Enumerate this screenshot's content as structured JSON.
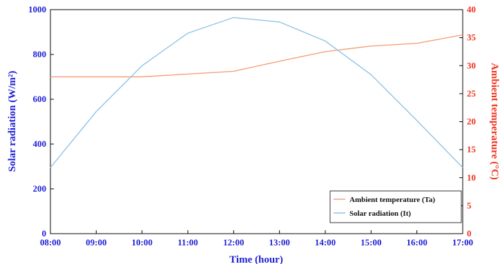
{
  "chart_data": {
    "type": "line",
    "xlabel": "Time (hour)",
    "ylabel_left": "Solar radiation (W/m²)",
    "ylabel_right": "Ambient temperature (°C)",
    "x": [
      "08:00",
      "09:00",
      "10:00",
      "11:00",
      "12:00",
      "13:00",
      "14:00",
      "15:00",
      "16:00",
      "17:00"
    ],
    "ylim_left": [
      0,
      1000
    ],
    "yticks_left": [
      0,
      200,
      400,
      600,
      800,
      1000
    ],
    "ylim_right": [
      0,
      40
    ],
    "yticks_right": [
      0,
      5,
      10,
      15,
      20,
      25,
      30,
      35,
      40
    ],
    "grid": false,
    "legend_position": "bottom-right",
    "series": [
      {
        "name": "Ambient temperature (Ta)",
        "axis": "right",
        "color": "#f5a07a",
        "values": [
          28,
          28,
          28,
          28.5,
          29,
          30.8,
          32.5,
          33.5,
          34,
          35.5
        ]
      },
      {
        "name": "Solar radiation (It)",
        "axis": "left",
        "color": "#8fc3e8",
        "values": [
          295,
          545,
          750,
          895,
          965,
          945,
          860,
          710,
          505,
          295
        ]
      }
    ]
  },
  "colors": {
    "left_axis": "#1f1fd6",
    "right_axis": "#f0341e"
  }
}
